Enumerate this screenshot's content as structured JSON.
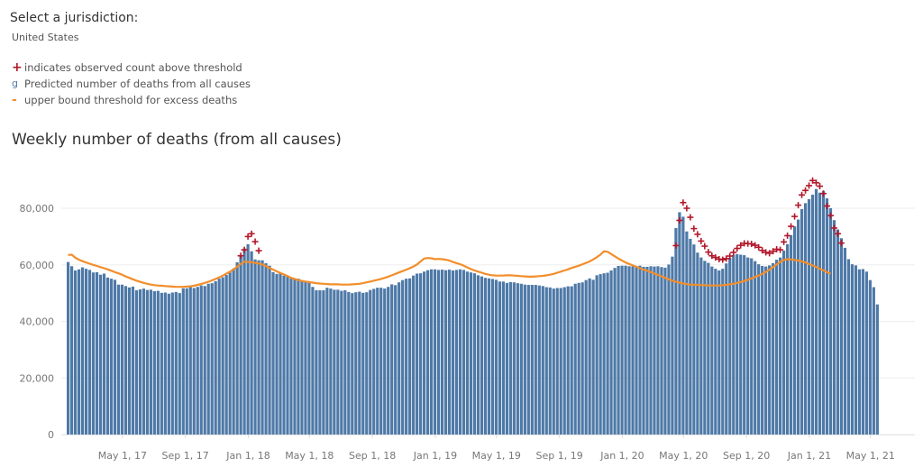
{
  "header": {
    "select_label": "Select a jurisdiction:",
    "select_value": "United States"
  },
  "legend": {
    "items": [
      {
        "icon": "plus-icon",
        "glyph": "+",
        "label": "indicates observed count above threshold",
        "color": "#b2182b"
      },
      {
        "icon": "bar-icon",
        "glyph": "g",
        "label": "Predicted number of deaths from all causes",
        "color": "#4e79a7"
      },
      {
        "icon": "dash-icon",
        "glyph": "-",
        "label": "upper bound threshold for excess deaths",
        "color": "#f28e2b"
      }
    ]
  },
  "chart_data": {
    "type": "bar",
    "title": "Weekly number of deaths (from all causes)",
    "xlabel": "",
    "ylabel": "",
    "ylim": [
      0,
      88000
    ],
    "y_ticks": [
      0,
      20000,
      40000,
      60000,
      80000
    ],
    "y_tick_labels": [
      "0",
      "20,000",
      "40,000",
      "60,000",
      "80,000"
    ],
    "x_tick_labels": [
      "May 1, 17",
      "Sep 1, 17",
      "Jan 1, 18",
      "May 1, 18",
      "Sep 1, 18",
      "Jan 1, 19",
      "May 1, 19",
      "Sep 1, 19",
      "Jan 1, 20",
      "May 1, 20",
      "Sep 1, 20",
      "Jan 1, 21",
      "May 1, 21"
    ],
    "x_tick_weeks": [
      16,
      33.5,
      51,
      68,
      85.5,
      103,
      120,
      137.5,
      155,
      172,
      189.5,
      207,
      224
    ],
    "grid": true,
    "series_colors": {
      "bars": "#4e79a7",
      "threshold": "#f28e2b",
      "above": "#b2182b"
    },
    "observed": [
      61000,
      59500,
      58000,
      58400,
      59100,
      58600,
      58200,
      57300,
      57400,
      56500,
      56900,
      55500,
      55100,
      54700,
      53000,
      53000,
      52500,
      52000,
      52300,
      51000,
      51300,
      51600,
      51100,
      51200,
      50700,
      50800,
      50100,
      50200,
      49800,
      50200,
      50400,
      50000,
      51700,
      51700,
      52300,
      51800,
      52200,
      52700,
      52500,
      53300,
      53500,
      54200,
      55100,
      55600,
      56400,
      57300,
      58700,
      60900,
      63000,
      65800,
      67300,
      64800,
      61900,
      61600,
      61600,
      60600,
      59700,
      57400,
      56800,
      57000,
      56200,
      55900,
      55200,
      55000,
      55100,
      54300,
      54100,
      53800,
      52200,
      51000,
      51000,
      51000,
      51900,
      51600,
      51200,
      51200,
      50800,
      51000,
      50400,
      50000,
      50300,
      50500,
      50100,
      50300,
      51100,
      51500,
      51900,
      51900,
      51600,
      52200,
      53100,
      52800,
      53800,
      54600,
      55100,
      55200,
      56200,
      56900,
      57000,
      57600,
      58100,
      58400,
      58400,
      58200,
      58300,
      58100,
      58300,
      58000,
      58200,
      58400,
      58200,
      57600,
      57300,
      57000,
      56300,
      55900,
      55400,
      55200,
      55000,
      54700,
      54100,
      54100,
      53600,
      53900,
      53800,
      53500,
      53300,
      53000,
      52900,
      52900,
      52900,
      52700,
      52500,
      52100,
      52000,
      51600,
      51800,
      51800,
      52100,
      52400,
      52400,
      53300,
      53600,
      53800,
      54600,
      55200,
      54700,
      56300,
      56700,
      57000,
      57200,
      58000,
      58900,
      59600,
      59700,
      59700,
      59500,
      59500,
      59300,
      59700,
      59300,
      59300,
      59500,
      59400,
      59500,
      59200,
      59000,
      60100,
      62900,
      73000,
      78600,
      77000,
      71800,
      69200,
      67200,
      64300,
      62600,
      61400,
      60700,
      59400,
      58600,
      58000,
      58600,
      60500,
      62400,
      63500,
      63800,
      63600,
      63400,
      62600,
      62300,
      61300,
      60200,
      59600,
      59400,
      59800,
      60600,
      61800,
      62600,
      65000,
      67300,
      70500,
      73600,
      76000,
      79700,
      81800,
      83200,
      84800,
      86800,
      85500,
      86100,
      83500,
      80000,
      75800,
      72500,
      69400,
      66000,
      62000,
      60200,
      59800,
      58400,
      58500,
      57600,
      54600,
      52100,
      46000
    ],
    "threshold": [
      63500,
      63600,
      62500,
      61800,
      61300,
      60800,
      60400,
      60000,
      59600,
      59200,
      58800,
      58400,
      57900,
      57400,
      57000,
      56500,
      55900,
      55400,
      54900,
      54400,
      54000,
      53600,
      53300,
      53000,
      52800,
      52700,
      52600,
      52500,
      52400,
      52300,
      52200,
      52200,
      52200,
      52300,
      52400,
      52600,
      52900,
      53200,
      53600,
      54000,
      54500,
      55000,
      55600,
      56200,
      56900,
      57600,
      58400,
      59300,
      60300,
      61100,
      61000,
      60900,
      60700,
      60500,
      60100,
      59500,
      58900,
      58300,
      57700,
      57100,
      56600,
      56000,
      55400,
      55000,
      54600,
      54300,
      54100,
      53900,
      53700,
      53500,
      53400,
      53300,
      53200,
      53100,
      53100,
      53100,
      53000,
      53000,
      53000,
      53100,
      53200,
      53300,
      53500,
      53800,
      54100,
      54400,
      54700,
      55000,
      55400,
      55800,
      56300,
      56800,
      57300,
      57800,
      58300,
      58800,
      59400,
      60100,
      61200,
      62200,
      62400,
      62300,
      62000,
      62100,
      62000,
      61800,
      61500,
      61000,
      60600,
      60200,
      59700,
      59100,
      58500,
      58000,
      57600,
      57200,
      56800,
      56500,
      56300,
      56200,
      56200,
      56200,
      56300,
      56300,
      56200,
      56100,
      56000,
      55900,
      55800,
      55800,
      55900,
      56000,
      56100,
      56300,
      56500,
      56800,
      57200,
      57600,
      58000,
      58400,
      58900,
      59300,
      59700,
      60200,
      60700,
      61200,
      61900,
      62700,
      63600,
      64800,
      64600,
      63800,
      63000,
      62200,
      61500,
      60800,
      60300,
      59800,
      59300,
      58800,
      58300,
      57900,
      57400,
      56900,
      56400,
      55900,
      55400,
      54900,
      54400,
      54000,
      53700,
      53400,
      53200,
      53000,
      52900,
      52900,
      52800,
      52800,
      52700,
      52700,
      52700,
      52700,
      52800,
      52900,
      53100,
      53300,
      53600,
      53900,
      54300,
      54700,
      55200,
      55700,
      56200,
      56800,
      57500,
      58300,
      59200,
      60100,
      61000,
      61700,
      62000,
      61900,
      61700,
      61500,
      61200,
      60800,
      60300,
      59800,
      59200,
      58600,
      58000,
      57400,
      56800
    ],
    "above_threshold_weeks": [
      48,
      49,
      50,
      51,
      52,
      53,
      169,
      170,
      171,
      172,
      173,
      174,
      175,
      176,
      177,
      178,
      179,
      180,
      181,
      182,
      183,
      184,
      185,
      186,
      187,
      188,
      189,
      190,
      191,
      192,
      193,
      194,
      195,
      196,
      197,
      198,
      199,
      200,
      201,
      202,
      203,
      204,
      205,
      206,
      207,
      208,
      209,
      210,
      211,
      212,
      213,
      214,
      215
    ],
    "above_marker_values": [
      63200,
      65300,
      70000,
      71000,
      68200,
      65000,
      66800,
      75700,
      82000,
      80000,
      76800,
      72800,
      70800,
      68400,
      66600,
      64500,
      63200,
      62600,
      62000,
      61800,
      62200,
      63100,
      64400,
      65800,
      66900,
      67600,
      67500,
      67400,
      66900,
      66200,
      65100,
      64400,
      64100,
      64800,
      65500,
      65300,
      68100,
      70300,
      73600,
      77100,
      81100,
      84700,
      86300,
      88000,
      89800,
      89000,
      87800,
      85200,
      80800,
      77400,
      73000,
      71000,
      67700
    ]
  }
}
